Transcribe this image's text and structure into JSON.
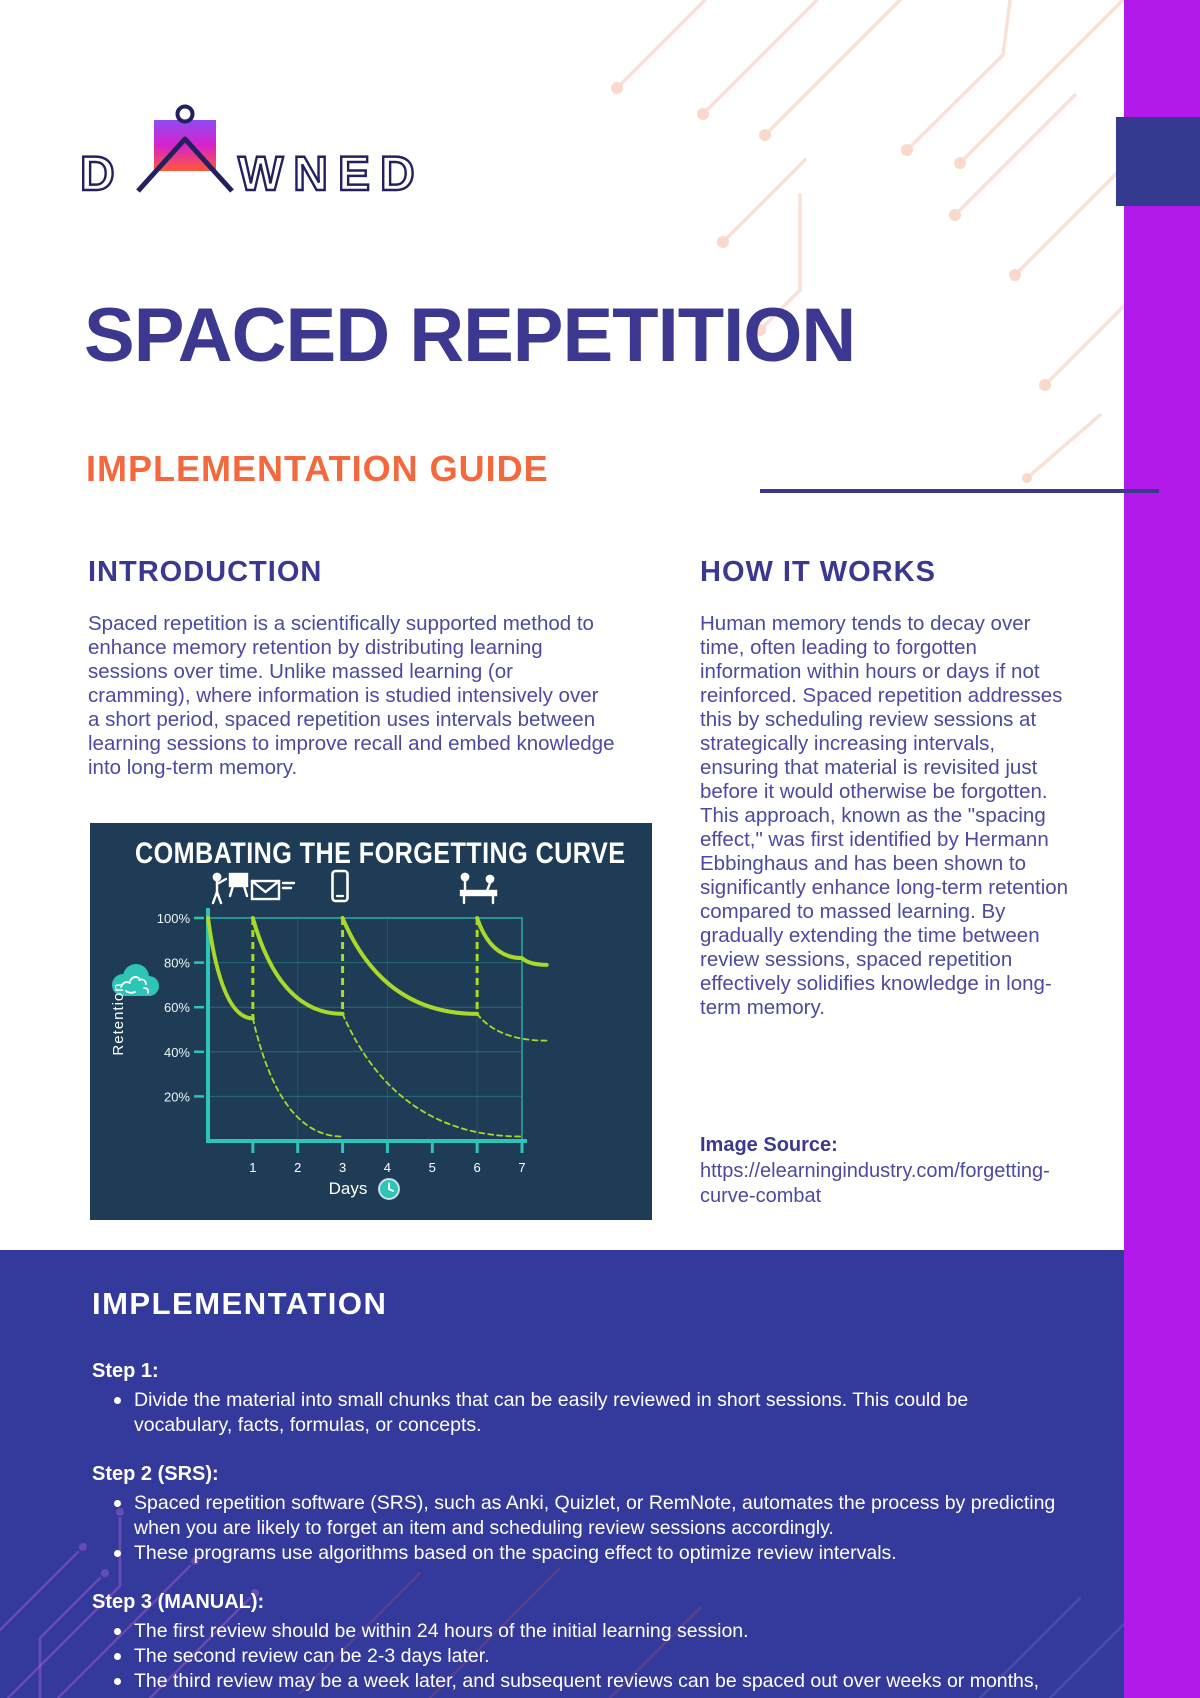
{
  "brand": {
    "name": "DAWNED",
    "logo_left": "D",
    "logo_right": "WNED"
  },
  "header": {
    "title": "SPACED REPETITION",
    "subtitle": "IMPLEMENTATION GUIDE"
  },
  "sections": {
    "introduction": {
      "heading": "INTRODUCTION",
      "body": "Spaced repetition is a scientifically supported method to enhance memory retention by distributing learning sessions over time. Unlike massed learning (or cramming), where information is studied intensively over a short period, spaced repetition uses intervals between learning sessions to improve recall and embed knowledge into long-term memory."
    },
    "how_it_works": {
      "heading": "HOW IT WORKS",
      "body": "Human memory tends to decay over time, often leading to forgotten information within hours or days if not reinforced. Spaced repetition addresses this by scheduling review sessions at strategically increasing intervals, ensuring that material is revisited just before it would otherwise be forgotten. This approach, known as the \"spacing effect,\" was first identified by Hermann Ebbinghaus and has been shown to significantly enhance long-term retention compared to massed learning. By gradually extending the time between review sessions, spaced repetition effectively solidifies knowledge in long-term memory."
    },
    "image_source": {
      "label": "Image Source:",
      "url": "https://elearningindustry.com/forgetting-curve-combat"
    },
    "implementation": {
      "heading": "IMPLEMENTATION",
      "steps": [
        {
          "label": "Step 1:",
          "bullets": [
            "Divide the material into small chunks that can be easily reviewed in short sessions. This could be vocabulary, facts, formulas, or concepts."
          ]
        },
        {
          "label": "Step 2 (SRS):",
          "bullets": [
            "Spaced repetition software (SRS), such as Anki, Quizlet, or RemNote, automates the process by predicting when you are likely to forget an item and scheduling review sessions accordingly.",
            "These programs use algorithms based on the spacing effect to optimize review intervals."
          ]
        },
        {
          "label": "Step 3 (MANUAL):",
          "bullets": [
            "The first review should be within 24 hours of the initial learning session.",
            "The second review can be 2-3 days later.",
            "The third review may be a week later, and subsequent reviews can be spaced out over weeks or months, depending on retention."
          ]
        }
      ]
    }
  },
  "chart_data": {
    "type": "line",
    "title": "COMBATING THE FORGETTING CURVE",
    "xlabel": "Days",
    "ylabel": "Retention",
    "x_ticks": [
      1,
      2,
      3,
      4,
      5,
      6,
      7
    ],
    "y_ticks": [
      "100%",
      "80%",
      "60%",
      "40%",
      "20%"
    ],
    "xlim": [
      0,
      7.6
    ],
    "ylim": [
      0,
      100
    ],
    "grid": true,
    "review_resets": [
      [
        1,
        55
      ],
      [
        3,
        57
      ],
      [
        6,
        57
      ]
    ],
    "icons": [
      "training-session-icon",
      "email-reminder-icon",
      "mobile-review-icon",
      "group-review-icon"
    ],
    "icon_days": [
      0,
      1,
      3,
      6
    ],
    "series": [
      {
        "name": "initial-learning",
        "style": "solid",
        "points": [
          [
            0,
            100
          ],
          [
            1,
            55
          ]
        ]
      },
      {
        "name": "after-first-review",
        "style": "solid",
        "points": [
          [
            1,
            100
          ],
          [
            3,
            57
          ]
        ]
      },
      {
        "name": "after-second-review",
        "style": "solid",
        "points": [
          [
            3,
            100
          ],
          [
            6,
            57
          ]
        ]
      },
      {
        "name": "after-third-review",
        "style": "solid",
        "points": [
          [
            6,
            100
          ],
          [
            7,
            82
          ],
          [
            7.55,
            79
          ]
        ]
      },
      {
        "name": "forgetting-without-review-1",
        "style": "dashed",
        "points": [
          [
            1,
            55
          ],
          [
            3,
            2
          ]
        ]
      },
      {
        "name": "forgetting-without-review-2",
        "style": "dashed",
        "points": [
          [
            3,
            57
          ],
          [
            7,
            2
          ]
        ]
      },
      {
        "name": "forgetting-without-review-3",
        "style": "dashed",
        "points": [
          [
            6,
            57
          ],
          [
            7.55,
            45
          ]
        ]
      }
    ],
    "colors": {
      "background": "#1E3C56",
      "axis": "#2EC4B6",
      "curve": "#A9D929",
      "text": "#FFFFFF"
    }
  },
  "colors": {
    "accent_purple": "#B21AEC",
    "accent_indigo_square": "#343A90",
    "heading_indigo": "#3B3890",
    "body_text": "#4C4AA0",
    "subtitle_orange": "#F3683C",
    "implementation_background": "#333A9B",
    "circuit_peach": "#FAE0D6",
    "logo_navy": "#23205F"
  }
}
